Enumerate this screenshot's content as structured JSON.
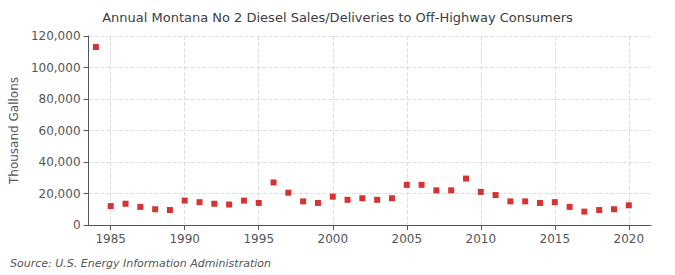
{
  "chart_data": {
    "type": "scatter",
    "title": "Annual Montana No 2 Diesel Sales/Deliveries to Off-Highway Consumers",
    "ylabel": "Thousand Gallons",
    "source": "Source: U.S. Energy Information Administration",
    "x": [
      1984,
      1985,
      1986,
      1987,
      1988,
      1989,
      1990,
      1991,
      1992,
      1993,
      1994,
      1995,
      1996,
      1997,
      1998,
      1999,
      2000,
      2001,
      2002,
      2003,
      2004,
      2005,
      2006,
      2007,
      2008,
      2009,
      2010,
      2011,
      2012,
      2013,
      2014,
      2015,
      2016,
      2017,
      2018,
      2019,
      2020
    ],
    "values": [
      113000,
      12000,
      13500,
      11500,
      10000,
      9500,
      15500,
      14500,
      13500,
      13000,
      15500,
      14000,
      27000,
      20500,
      15000,
      14000,
      18000,
      16000,
      17000,
      16000,
      17000,
      25500,
      25500,
      22000,
      22000,
      29500,
      21000,
      19000,
      15000,
      15000,
      14000,
      14500,
      11500,
      8500,
      9500,
      10000,
      12500
    ],
    "color": "#cc0000",
    "marker": "square",
    "xlim": [
      1983.5,
      2021.5
    ],
    "xticks": [
      1985,
      1990,
      1995,
      2000,
      2005,
      2010,
      2015,
      2020
    ],
    "ylim": [
      0,
      120000
    ],
    "yticks": [
      0,
      {
        "value": 20000,
        "label": "20,000"
      },
      {
        "value": 40000,
        "label": "40,000"
      },
      {
        "value": 60000,
        "label": "60,000"
      },
      {
        "value": 80000,
        "label": "80,000"
      },
      {
        "value": 100000,
        "label": "100,000"
      },
      {
        "value": 120000,
        "label": "120,000"
      }
    ],
    "grid": true
  }
}
